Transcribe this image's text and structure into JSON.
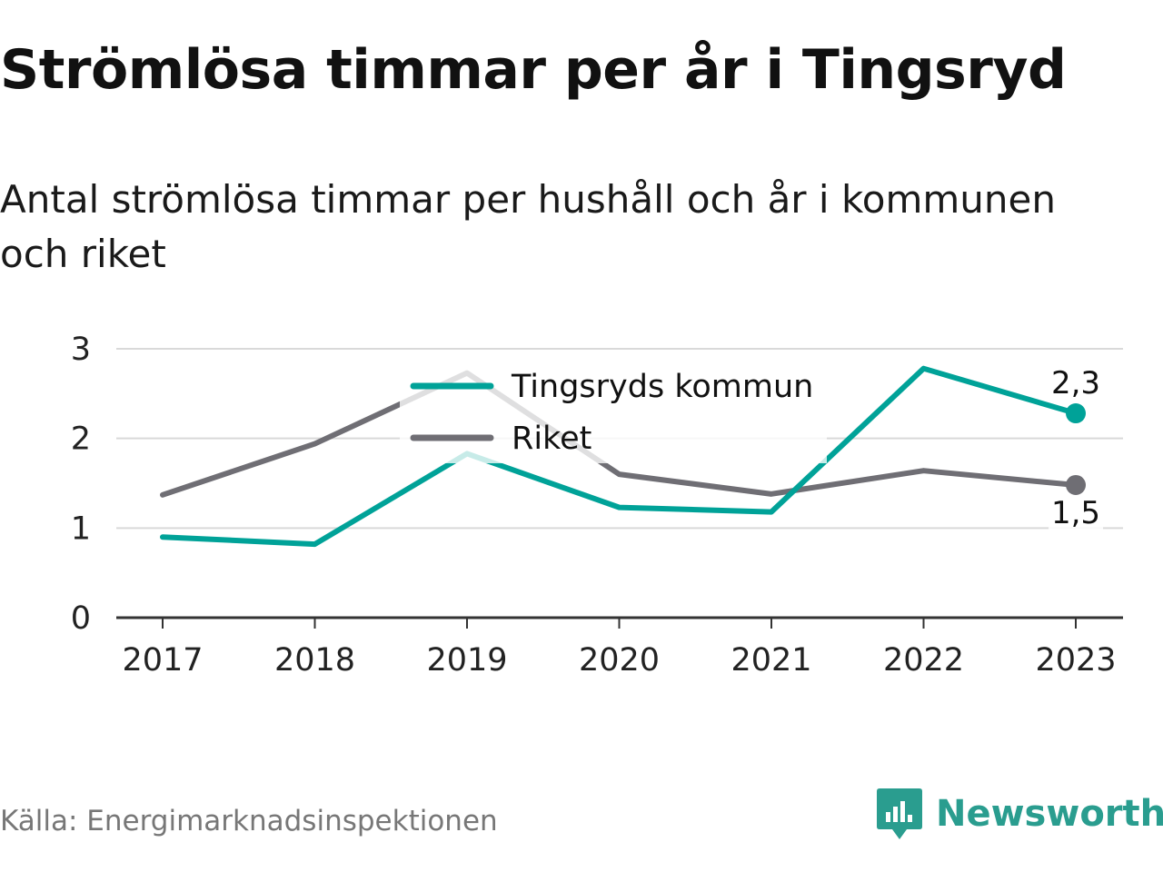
{
  "header": {
    "title": "Strömlösa timmar per år i Tingsryd",
    "subtitle": "Antal strömlösa timmar per hushåll och år i kommunen och riket"
  },
  "chart_data": {
    "type": "line",
    "categories": [
      "2017",
      "2018",
      "2019",
      "2020",
      "2021",
      "2022",
      "2023"
    ],
    "series": [
      {
        "name": "Tingsryds kommun",
        "values": [
          0.9,
          0.82,
          1.83,
          1.23,
          1.18,
          2.78,
          2.28
        ],
        "color": "#00a298",
        "end_label": "2,3"
      },
      {
        "name": "Riket",
        "values": [
          1.37,
          1.94,
          2.73,
          1.6,
          1.38,
          1.64,
          1.48
        ],
        "color": "#6f6e74",
        "end_label": "1,5"
      }
    ],
    "ylim": [
      0,
      3
    ],
    "yticks": [
      "0",
      "1",
      "2",
      "3"
    ],
    "grid": true,
    "legend_position": "top-center",
    "xlabel": "",
    "ylabel": ""
  },
  "footer": {
    "source": "Källa: Energimarknadsinspektionen",
    "brand": "Newsworthy",
    "brand_color": "#2a9d8f"
  }
}
